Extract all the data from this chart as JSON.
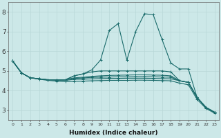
{
  "xlabel": "Humidex (Indice chaleur)",
  "background_color": "#cce8e8",
  "grid_color": "#b8d8d8",
  "line_color": "#1a6b6b",
  "x_values": [
    0,
    1,
    2,
    3,
    4,
    5,
    6,
    7,
    8,
    9,
    10,
    11,
    12,
    13,
    14,
    15,
    16,
    17,
    18,
    19,
    20,
    21,
    22,
    23
  ],
  "lines": [
    [
      5.5,
      4.9,
      4.65,
      4.6,
      4.55,
      4.55,
      4.55,
      4.75,
      4.85,
      5.05,
      5.55,
      7.05,
      7.4,
      5.55,
      7.0,
      7.9,
      7.85,
      6.6,
      5.4,
      5.1,
      5.1,
      3.65,
      3.15,
      2.9
    ],
    [
      5.5,
      4.9,
      4.65,
      4.6,
      4.55,
      4.55,
      4.55,
      4.75,
      4.85,
      4.95,
      5.0,
      5.0,
      5.0,
      5.0,
      5.0,
      5.0,
      5.0,
      5.0,
      4.95,
      4.5,
      4.42,
      3.65,
      3.15,
      2.9
    ],
    [
      5.5,
      4.9,
      4.65,
      4.6,
      4.55,
      4.55,
      4.55,
      4.65,
      4.68,
      4.72,
      4.75,
      4.77,
      4.78,
      4.79,
      4.8,
      4.8,
      4.79,
      4.78,
      4.75,
      4.5,
      4.42,
      3.65,
      3.15,
      2.9
    ],
    [
      5.5,
      4.9,
      4.65,
      4.6,
      4.55,
      4.55,
      4.55,
      4.62,
      4.64,
      4.67,
      4.68,
      4.69,
      4.7,
      4.7,
      4.71,
      4.71,
      4.7,
      4.69,
      4.68,
      4.5,
      4.42,
      3.65,
      3.15,
      2.9
    ],
    [
      5.5,
      4.9,
      4.65,
      4.6,
      4.55,
      4.53,
      4.52,
      4.57,
      4.58,
      4.6,
      4.61,
      4.62,
      4.62,
      4.63,
      4.63,
      4.63,
      4.62,
      4.61,
      4.6,
      4.5,
      4.42,
      3.65,
      3.15,
      2.9
    ],
    [
      5.5,
      4.9,
      4.65,
      4.58,
      4.52,
      4.48,
      4.45,
      4.47,
      4.48,
      4.5,
      4.51,
      4.52,
      4.52,
      4.52,
      4.53,
      4.53,
      4.52,
      4.51,
      4.5,
      4.38,
      4.3,
      3.55,
      3.1,
      2.85
    ]
  ],
  "ylim": [
    2.5,
    8.5
  ],
  "yticks": [
    3,
    4,
    5,
    6,
    7,
    8
  ],
  "xticks": [
    0,
    1,
    2,
    3,
    4,
    5,
    6,
    7,
    8,
    9,
    10,
    11,
    12,
    13,
    14,
    15,
    16,
    17,
    18,
    19,
    20,
    21,
    22,
    23
  ]
}
